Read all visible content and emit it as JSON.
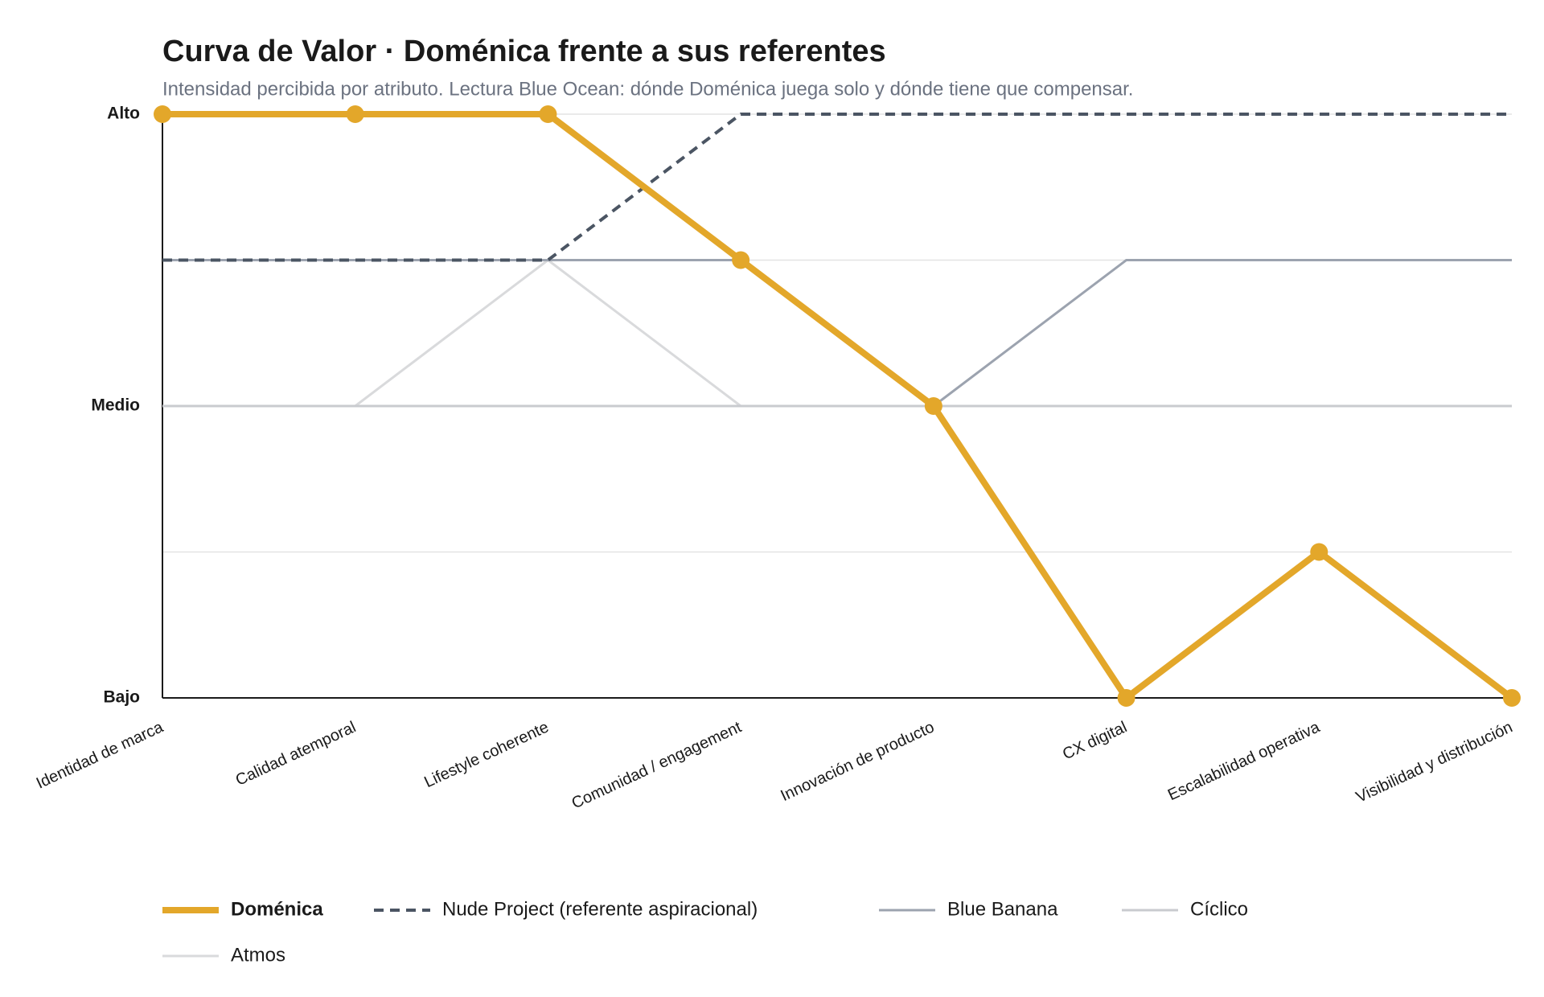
{
  "chart_data": {
    "type": "line",
    "title": "Curva de Valor · Doménica frente a sus referentes",
    "subtitle": "Intensidad percibida por atributo. Lectura Blue Ocean: dónde Doménica juega solo y dónde tiene que compensar.",
    "categories": [
      "Identidad de marca",
      "Calidad atemporal",
      "Lifestyle coherente",
      "Comunidad / engagement",
      "Innovación de producto",
      "CX digital",
      "Escalabilidad operativa",
      "Visibilidad y distribución"
    ],
    "ylim": [
      0,
      4
    ],
    "yticks": [
      {
        "value": 0,
        "label": "Bajo"
      },
      {
        "value": 1,
        "label": null
      },
      {
        "value": 2,
        "label": "Medio"
      },
      {
        "value": 3,
        "label": null
      },
      {
        "value": 4,
        "label": "Alto"
      }
    ],
    "grid": true,
    "series": [
      {
        "name": "Doménica",
        "color": "#e3a72a",
        "emphasis": true,
        "markers": true,
        "values": [
          4,
          4,
          4,
          3,
          2,
          0,
          1,
          0
        ]
      },
      {
        "name": "Nude Project (referente aspiracional)",
        "color": "#4b5563",
        "line_style": "dashed",
        "values": [
          3,
          3,
          3,
          4,
          4,
          4,
          4,
          4
        ]
      },
      {
        "name": "Blue Banana",
        "color": "#9ca3af",
        "values": [
          3,
          3,
          3,
          3,
          2,
          3,
          3,
          3
        ]
      },
      {
        "name": "Cíclico",
        "color": "#c9cbcf",
        "values": [
          2,
          2,
          2,
          2,
          2,
          2,
          2,
          2
        ]
      },
      {
        "name": "Atmos",
        "color": "#d9dadc",
        "values": [
          2,
          2,
          3,
          2,
          2,
          2,
          2,
          2
        ]
      }
    ]
  }
}
